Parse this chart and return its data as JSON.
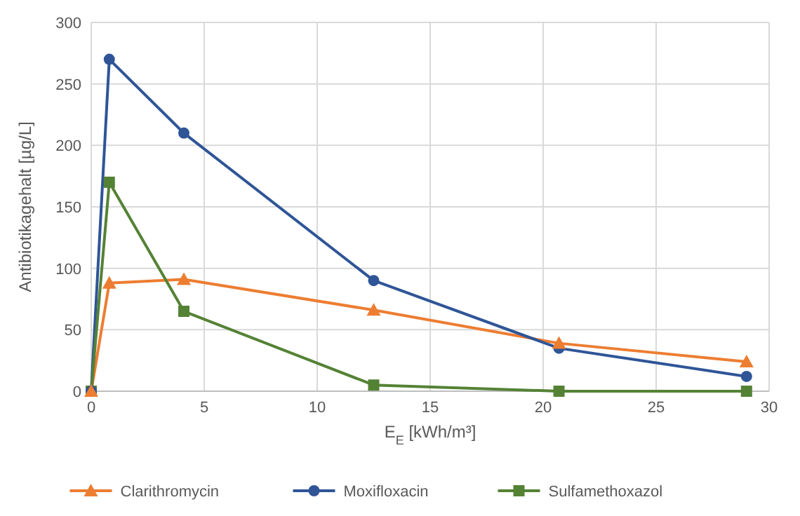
{
  "chart_data": {
    "type": "line",
    "xlabel": "E$_{E}$ [kWh/m³]",
    "ylabel": "Antibiotikagehalt [µg/L]",
    "x": [
      0,
      0.8,
      4.1,
      12.5,
      20.7,
      29
    ],
    "xlim": [
      0,
      30
    ],
    "xticks": [
      0,
      5,
      10,
      15,
      20,
      25,
      30
    ],
    "ylim": [
      0,
      300
    ],
    "yticks": [
      0,
      50,
      100,
      150,
      200,
      250,
      300
    ],
    "grid": true,
    "legend": "bottom",
    "line_style": "solid",
    "series": [
      {
        "name": "Clarithromycin",
        "color": "#ed7d31",
        "marker": "triangle",
        "values": [
          0,
          88,
          91,
          66,
          39,
          24
        ]
      },
      {
        "name": "Moxifloxacin",
        "color": "#2f5597",
        "marker": "circle",
        "values": [
          0,
          270,
          210,
          90,
          35,
          12
        ]
      },
      {
        "name": "Sulfamethoxazol",
        "color": "#548235",
        "marker": "square",
        "values": [
          0,
          170,
          65,
          5,
          0,
          0
        ]
      }
    ]
  }
}
